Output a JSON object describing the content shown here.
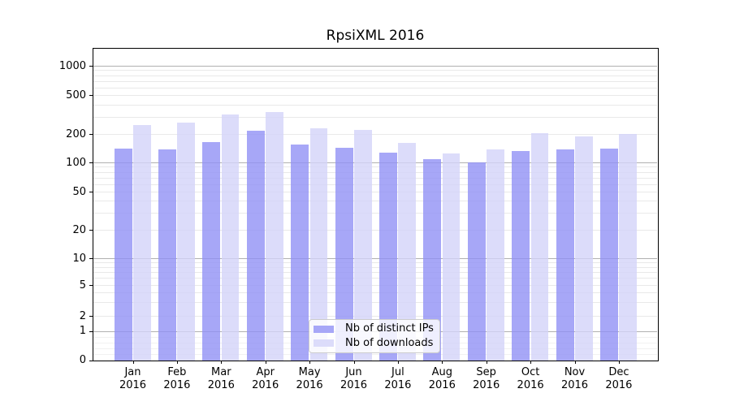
{
  "window": {
    "title": "RpsiXML 2016"
  },
  "chart_data": {
    "type": "bar",
    "title": "RpsiXML 2016",
    "categories": [
      "Jan",
      "Feb",
      "Mar",
      "Apr",
      "May",
      "Jun",
      "Jul",
      "Aug",
      "Sep",
      "Oct",
      "Nov",
      "Dec"
    ],
    "category_year": "2016",
    "series": [
      {
        "name": "Nb of distinct IPs",
        "color": "#a7a7f7",
        "values": [
          140,
          137,
          163,
          215,
          154,
          144,
          126,
          108,
          100,
          132,
          138,
          141
        ]
      },
      {
        "name": "Nb of downloads",
        "color": "#dcdcfa",
        "values": [
          245,
          260,
          315,
          335,
          228,
          218,
          162,
          124,
          136,
          202,
          190,
          201
        ]
      }
    ],
    "xlabel": "",
    "ylabel": "",
    "yscale": "symlog",
    "y_ticks": [
      0,
      1,
      2,
      5,
      10,
      20,
      50,
      100,
      200,
      500,
      1000
    ],
    "ylim": [
      0,
      1500
    ],
    "grid": "horizontal major and minor gridlines",
    "legend_position": "lower-center"
  },
  "legend": {
    "items": [
      "Nb of distinct IPs",
      "Nb of downloads"
    ]
  }
}
